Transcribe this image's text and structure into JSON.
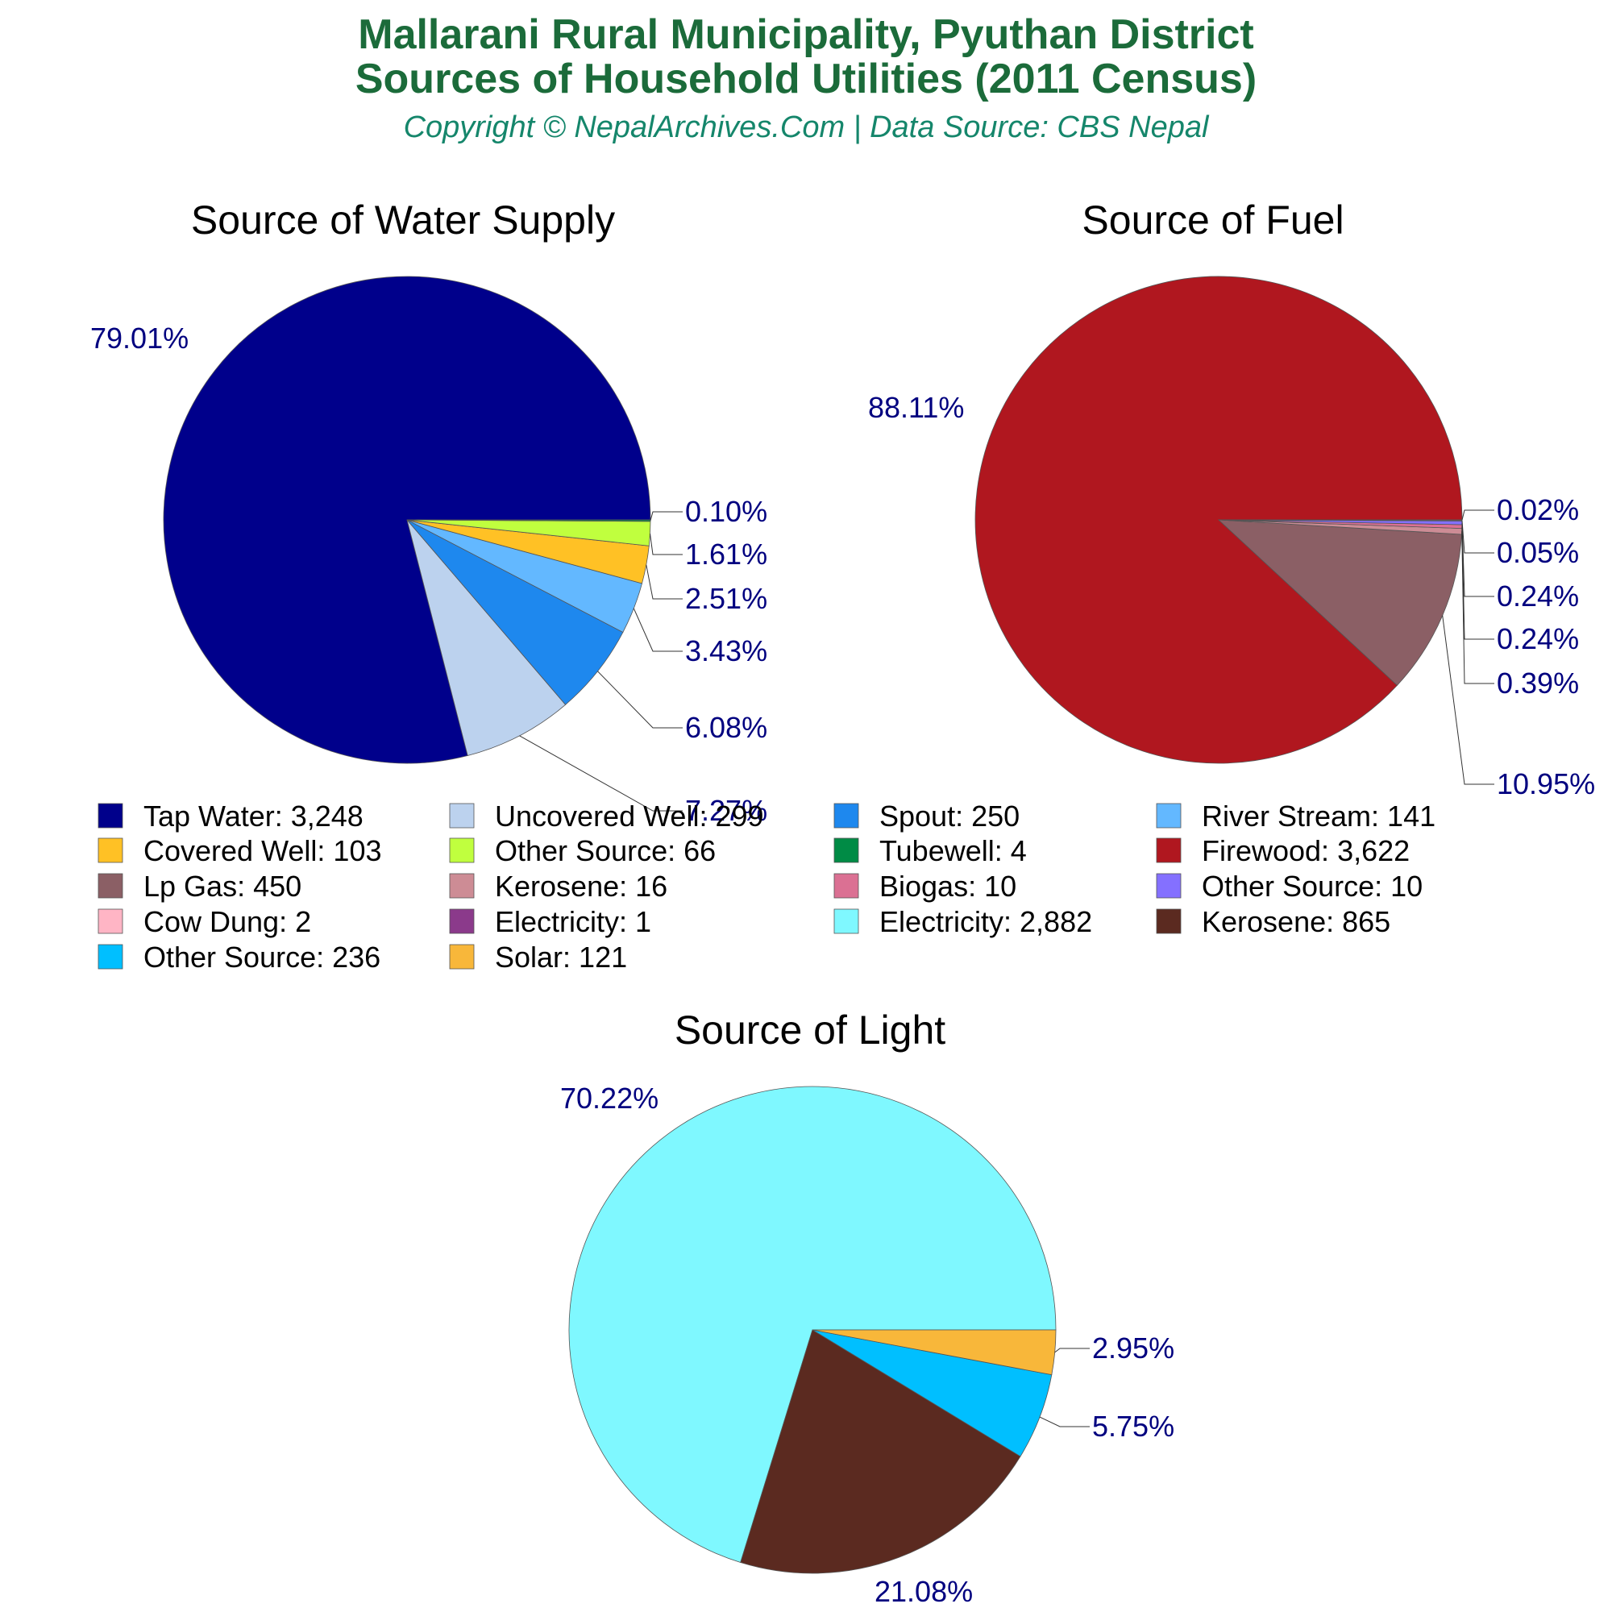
{
  "header": {
    "title_line1": "Mallarani Rural Municipality, Pyuthan District",
    "title_line2": "Sources of Household Utilities (2011 Census)",
    "subtitle": "Copyright © NepalArchives.Com | Data Source: CBS Nepal"
  },
  "chart_data": [
    {
      "type": "pie",
      "title": "Source of Water Supply",
      "slices": [
        {
          "label": "Tap Water",
          "value": 3248,
          "display": "3,248",
          "percent": "79.01%",
          "color": "#00008b"
        },
        {
          "label": "Uncovered Well",
          "value": 299,
          "display": "299",
          "percent": "7.27%",
          "color": "#bcd2ee"
        },
        {
          "label": "Spout",
          "value": 250,
          "display": "250",
          "percent": "6.08%",
          "color": "#1e88ee"
        },
        {
          "label": "River Stream",
          "value": 141,
          "display": "141",
          "percent": "3.43%",
          "color": "#63b8ff"
        },
        {
          "label": "Covered Well",
          "value": 103,
          "display": "103",
          "percent": "2.51%",
          "color": "#ffc125"
        },
        {
          "label": "Other Source",
          "value": 66,
          "display": "66",
          "percent": "1.61%",
          "color": "#c0ff3e"
        },
        {
          "label": "Tubewell",
          "value": 4,
          "display": "4",
          "percent": "0.10%",
          "color": "#008b45"
        }
      ]
    },
    {
      "type": "pie",
      "title": "Source of Fuel",
      "slices": [
        {
          "label": "Firewood",
          "value": 3622,
          "display": "3,622",
          "percent": "88.11%",
          "color": "#b0171f"
        },
        {
          "label": "Lp Gas",
          "value": 450,
          "display": "450",
          "percent": "10.95%",
          "color": "#8b5f65"
        },
        {
          "label": "Kerosene",
          "value": 16,
          "display": "16",
          "percent": "0.39%",
          "color": "#cd8c95"
        },
        {
          "label": "Biogas",
          "value": 10,
          "display": "10",
          "percent": "0.24%",
          "color": "#db7093"
        },
        {
          "label": "Other Source",
          "value": 10,
          "display": "10",
          "percent": "0.24%",
          "color": "#8470ff"
        },
        {
          "label": "Cow Dung",
          "value": 2,
          "display": "2",
          "percent": "0.05%",
          "color": "#ffb5c5"
        },
        {
          "label": "Electricity",
          "value": 1,
          "display": "1",
          "percent": "0.02%",
          "color": "#8b3a8b"
        }
      ]
    },
    {
      "type": "pie",
      "title": "Source of Light",
      "slices": [
        {
          "label": "Electricity",
          "value": 2882,
          "display": "2,882",
          "percent": "70.22%",
          "color": "#7ff8ff"
        },
        {
          "label": "Kerosene",
          "value": 865,
          "display": "865",
          "percent": "21.08%",
          "color": "#5b2a20"
        },
        {
          "label": "Other Source",
          "value": 236,
          "display": "236",
          "percent": "5.75%",
          "color": "#00bfff"
        },
        {
          "label": "Solar",
          "value": 121,
          "display": "121",
          "percent": "2.95%",
          "color": "#f8b73a"
        }
      ]
    }
  ],
  "legend": [
    {
      "label": "Tap Water",
      "value": "3,248",
      "color": "#00008b"
    },
    {
      "label": "Uncovered Well",
      "value": "299",
      "color": "#bcd2ee"
    },
    {
      "label": "Spout",
      "value": "250",
      "color": "#1e88ee"
    },
    {
      "label": "River Stream",
      "value": "141",
      "color": "#63b8ff"
    },
    {
      "label": "Covered Well",
      "value": "103",
      "color": "#ffc125"
    },
    {
      "label": "Other Source",
      "value": "66",
      "color": "#c0ff3e"
    },
    {
      "label": "Tubewell",
      "value": "4",
      "color": "#008b45"
    },
    {
      "label": "Firewood",
      "value": "3,622",
      "color": "#b0171f"
    },
    {
      "label": "Lp Gas",
      "value": "450",
      "color": "#8b5f65"
    },
    {
      "label": "Kerosene",
      "value": "16",
      "color": "#cd8c95"
    },
    {
      "label": "Biogas",
      "value": "10",
      "color": "#db7093"
    },
    {
      "label": "Other Source",
      "value": "10",
      "color": "#8470ff"
    },
    {
      "label": "Cow Dung",
      "value": "2",
      "color": "#ffb5c5"
    },
    {
      "label": "Electricity",
      "value": "1",
      "color": "#8b3a8b"
    },
    {
      "label": "Electricity",
      "value": "2,882",
      "color": "#7ff8ff"
    },
    {
      "label": "Kerosene",
      "value": "865",
      "color": "#5b2a20"
    },
    {
      "label": "Other Source",
      "value": "236",
      "color": "#00bfff"
    },
    {
      "label": "Solar",
      "value": "121",
      "color": "#f8b73a"
    }
  ]
}
